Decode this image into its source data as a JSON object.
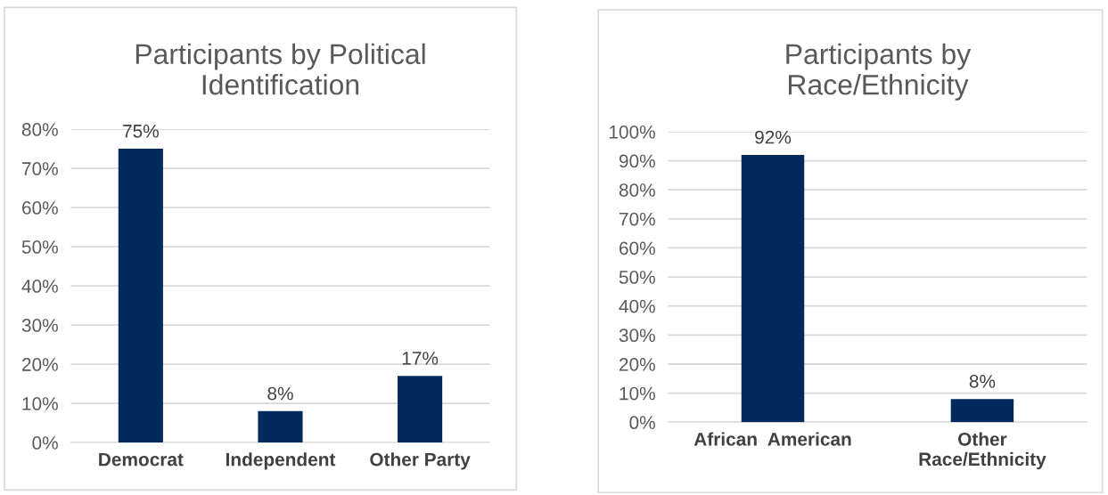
{
  "chart_data": [
    {
      "type": "bar",
      "title": "Participants by Political\nIdentification",
      "categories": [
        "Democrat",
        "Independent",
        "Other Party"
      ],
      "values": [
        75,
        8,
        17
      ],
      "color": "#002b5c",
      "value_labels": [
        "75%",
        "8%",
        "17%"
      ],
      "ylim": [
        0,
        80
      ],
      "yticks": [
        {
          "value": 0,
          "label": "0%"
        },
        {
          "value": 10,
          "label": "10%"
        },
        {
          "value": 20,
          "label": "20%"
        },
        {
          "value": 30,
          "label": "30%"
        },
        {
          "value": 40,
          "label": "40%"
        },
        {
          "value": 50,
          "label": "50%"
        },
        {
          "value": 60,
          "label": "60%"
        },
        {
          "value": 70,
          "label": "70%"
        },
        {
          "value": 80,
          "label": "80%"
        }
      ],
      "grid": "y"
    },
    {
      "type": "bar",
      "title": "Participants by\nRace/Ethnicity",
      "categories": [
        "African  American",
        "Other\nRace/Ethnicity"
      ],
      "values": [
        92,
        8
      ],
      "color": "#002b5c",
      "value_labels": [
        "92%",
        "8%"
      ],
      "ylim": [
        0,
        100
      ],
      "yticks": [
        {
          "value": 0,
          "label": "0%"
        },
        {
          "value": 10,
          "label": "10%"
        },
        {
          "value": 20,
          "label": "20%"
        },
        {
          "value": 30,
          "label": "30%"
        },
        {
          "value": 40,
          "label": "40%"
        },
        {
          "value": 50,
          "label": "50%"
        },
        {
          "value": 60,
          "label": "60%"
        },
        {
          "value": 70,
          "label": "70%"
        },
        {
          "value": 80,
          "label": "80%"
        },
        {
          "value": 90,
          "label": "90%"
        },
        {
          "value": 100,
          "label": "100%"
        }
      ],
      "grid": "y"
    }
  ]
}
